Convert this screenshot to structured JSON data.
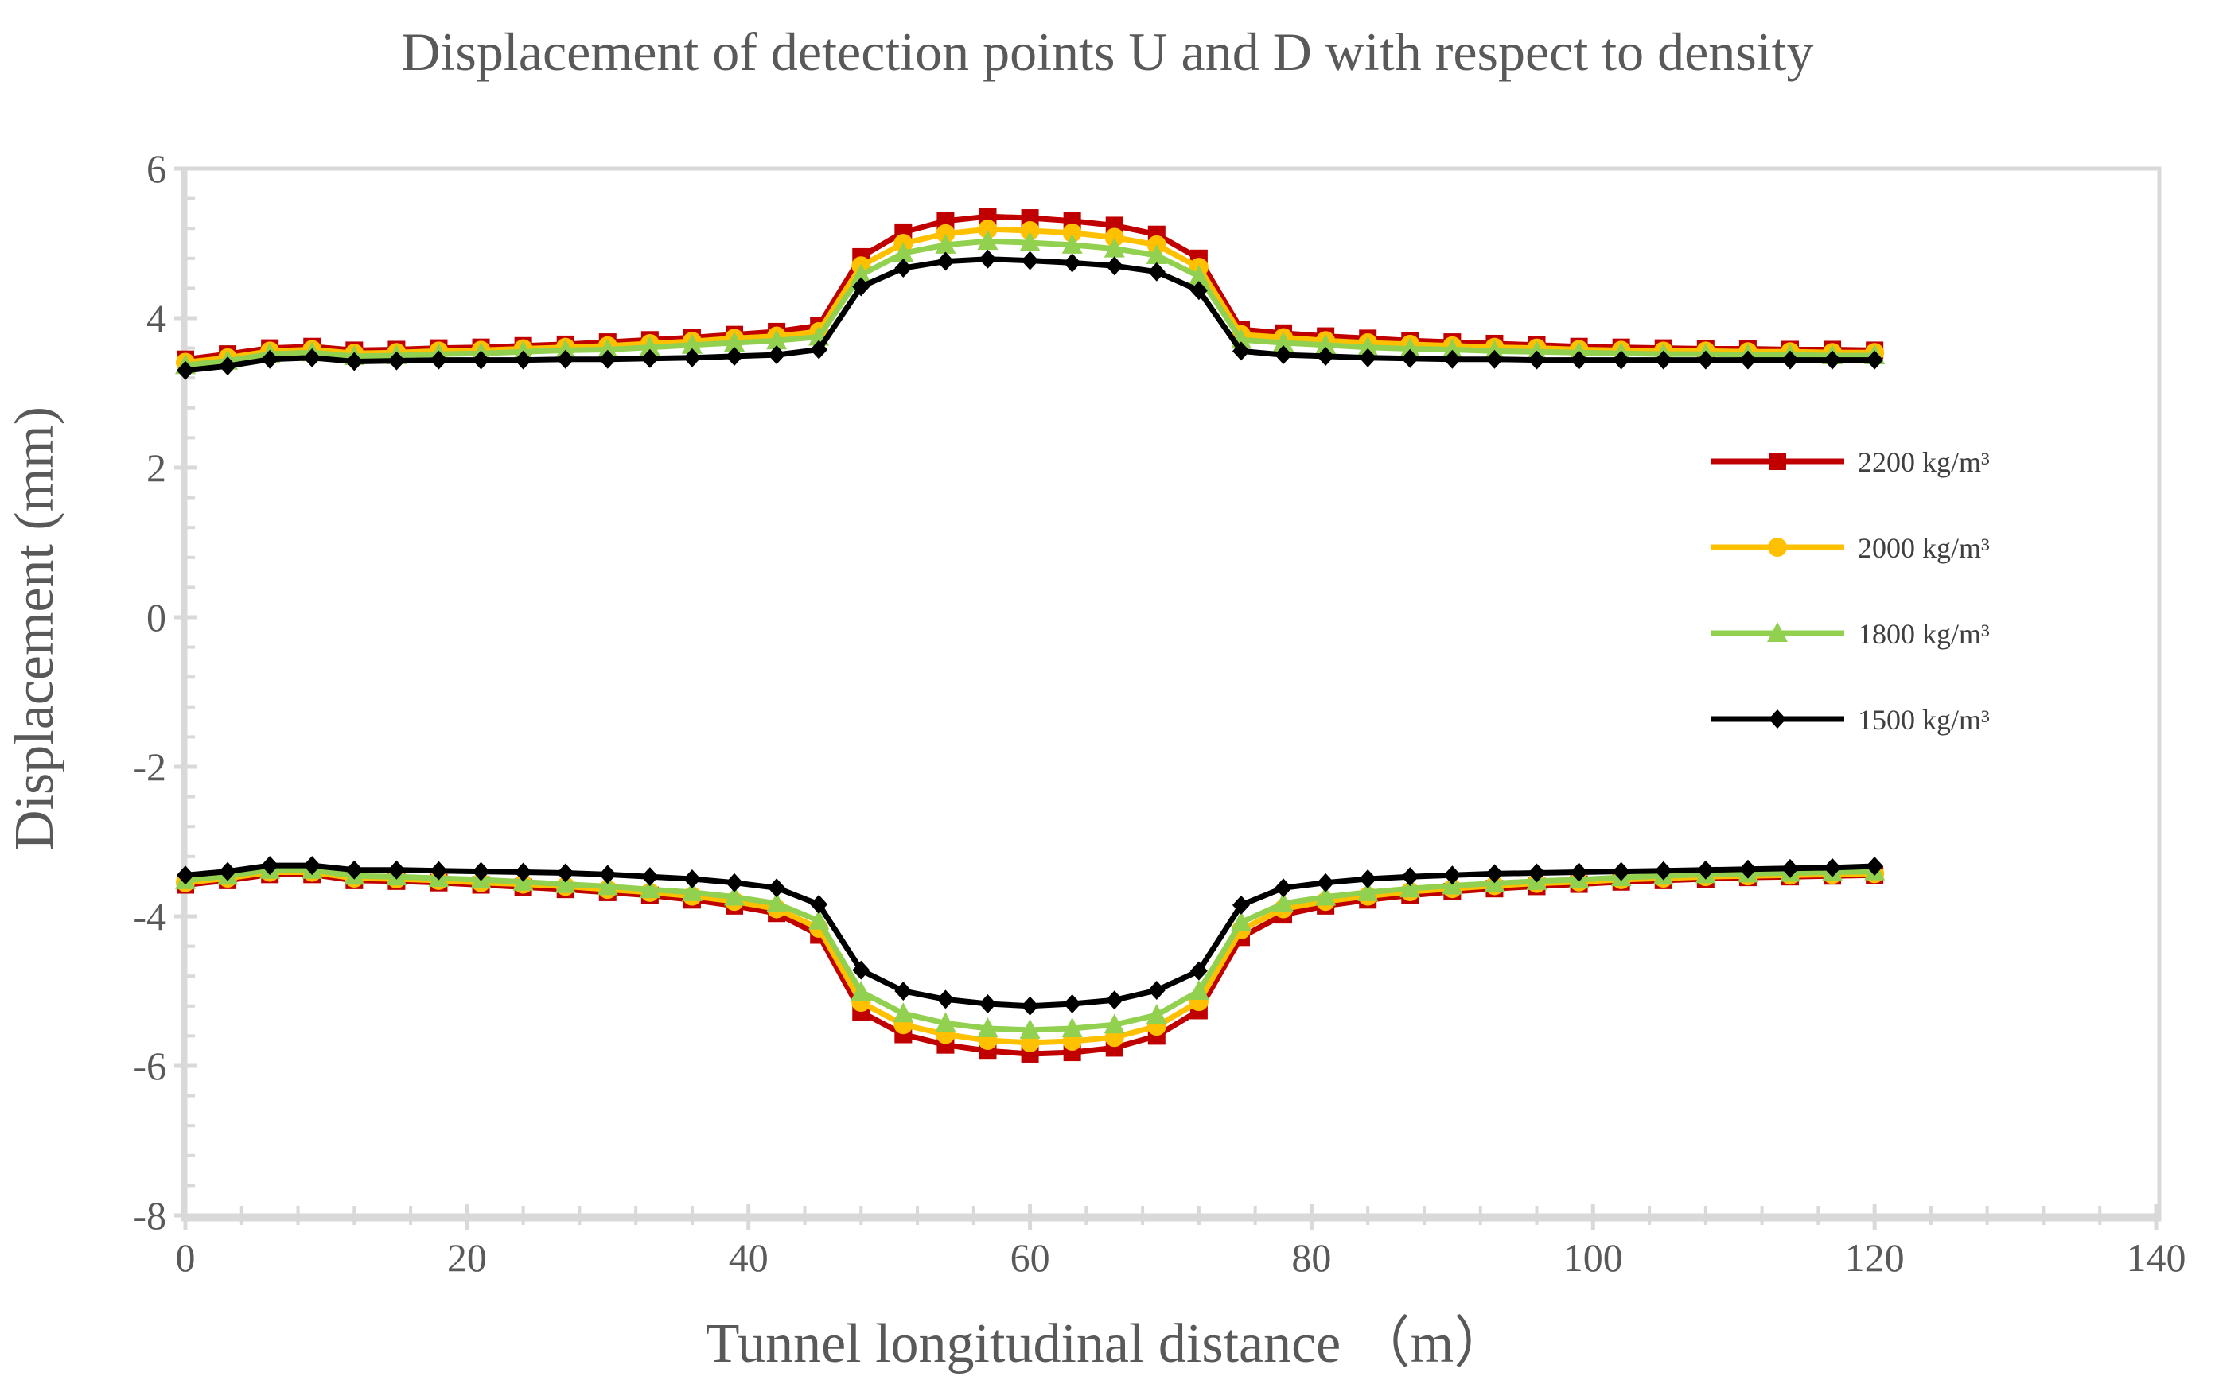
{
  "chart_data": {
    "type": "line",
    "title": "Displacement of detection points U and D with respect to density",
    "xlabel": "Tunnel longitudinal distance （m）",
    "ylabel": "Displacement (mm)",
    "xlim": [
      0,
      140
    ],
    "ylim": [
      -8,
      6
    ],
    "xticks": [
      0,
      20,
      40,
      60,
      80,
      100,
      120,
      140
    ],
    "yticks": [
      -8,
      -6,
      -4,
      -2,
      0,
      2,
      4,
      6
    ],
    "xtick_labels": [
      "0",
      "20",
      "40",
      "60",
      "80",
      "100",
      "120",
      "140"
    ],
    "ytick_labels": [
      "-8",
      "-6",
      "-4",
      "-2",
      "0",
      "2",
      "4",
      "6"
    ],
    "grid": false,
    "legend_position": "right",
    "x": [
      0,
      3,
      6,
      9,
      12,
      15,
      18,
      21,
      24,
      27,
      30,
      33,
      36,
      39,
      42,
      45,
      48,
      51,
      54,
      57,
      60,
      63,
      66,
      69,
      72,
      75,
      78,
      81,
      84,
      87,
      90,
      93,
      96,
      99,
      102,
      105,
      108,
      111,
      114,
      117,
      120
    ],
    "series": [
      {
        "name": "2200 kg/m³",
        "color": "#c00000",
        "marker": "square",
        "upper": [
          3.45,
          3.52,
          3.6,
          3.62,
          3.57,
          3.58,
          3.6,
          3.61,
          3.63,
          3.65,
          3.68,
          3.71,
          3.74,
          3.78,
          3.82,
          3.9,
          4.82,
          5.15,
          5.3,
          5.36,
          5.34,
          5.3,
          5.24,
          5.12,
          4.8,
          3.85,
          3.8,
          3.76,
          3.73,
          3.7,
          3.68,
          3.66,
          3.64,
          3.62,
          3.61,
          3.6,
          3.59,
          3.59,
          3.58,
          3.58,
          3.57
        ],
        "lower": [
          -3.58,
          -3.52,
          -3.44,
          -3.44,
          -3.52,
          -3.53,
          -3.55,
          -3.58,
          -3.61,
          -3.64,
          -3.68,
          -3.72,
          -3.78,
          -3.86,
          -3.96,
          -4.25,
          -5.28,
          -5.58,
          -5.72,
          -5.8,
          -5.84,
          -5.82,
          -5.76,
          -5.6,
          -5.26,
          -4.28,
          -3.98,
          -3.86,
          -3.78,
          -3.72,
          -3.67,
          -3.63,
          -3.6,
          -3.57,
          -3.54,
          -3.52,
          -3.5,
          -3.48,
          -3.47,
          -3.46,
          -3.45
        ]
      },
      {
        "name": "2000 kg/m³",
        "color": "#ffc000",
        "marker": "circle",
        "upper": [
          3.41,
          3.47,
          3.56,
          3.58,
          3.53,
          3.54,
          3.56,
          3.57,
          3.59,
          3.61,
          3.63,
          3.66,
          3.69,
          3.73,
          3.76,
          3.82,
          4.7,
          5.0,
          5.13,
          5.19,
          5.17,
          5.14,
          5.08,
          4.98,
          4.68,
          3.78,
          3.74,
          3.7,
          3.67,
          3.65,
          3.63,
          3.61,
          3.6,
          3.58,
          3.57,
          3.56,
          3.56,
          3.55,
          3.55,
          3.54,
          3.54
        ],
        "lower": [
          -3.55,
          -3.49,
          -3.41,
          -3.41,
          -3.49,
          -3.5,
          -3.52,
          -3.55,
          -3.57,
          -3.6,
          -3.64,
          -3.68,
          -3.73,
          -3.8,
          -3.9,
          -4.16,
          -5.15,
          -5.45,
          -5.58,
          -5.66,
          -5.69,
          -5.67,
          -5.62,
          -5.47,
          -5.14,
          -4.18,
          -3.9,
          -3.8,
          -3.73,
          -3.67,
          -3.63,
          -3.59,
          -3.56,
          -3.54,
          -3.51,
          -3.49,
          -3.47,
          -3.46,
          -3.45,
          -3.44,
          -3.43
        ]
      },
      {
        "name": "1800 kg/m³",
        "color": "#92d050",
        "marker": "triangle",
        "upper": [
          3.37,
          3.43,
          3.52,
          3.54,
          3.49,
          3.5,
          3.52,
          3.53,
          3.55,
          3.57,
          3.58,
          3.61,
          3.64,
          3.67,
          3.7,
          3.75,
          4.58,
          4.87,
          4.98,
          5.03,
          5.01,
          4.98,
          4.93,
          4.84,
          4.56,
          3.71,
          3.67,
          3.64,
          3.61,
          3.59,
          3.58,
          3.56,
          3.55,
          3.54,
          3.53,
          3.52,
          3.52,
          3.51,
          3.51,
          3.5,
          3.5
        ],
        "lower": [
          -3.52,
          -3.46,
          -3.38,
          -3.38,
          -3.46,
          -3.47,
          -3.49,
          -3.51,
          -3.54,
          -3.57,
          -3.6,
          -3.64,
          -3.68,
          -3.74,
          -3.83,
          -4.06,
          -5.01,
          -5.3,
          -5.43,
          -5.5,
          -5.52,
          -5.5,
          -5.45,
          -5.32,
          -5.0,
          -4.08,
          -3.83,
          -3.74,
          -3.68,
          -3.63,
          -3.59,
          -3.56,
          -3.53,
          -3.51,
          -3.48,
          -3.46,
          -3.44,
          -3.43,
          -3.42,
          -3.41,
          -3.4
        ]
      },
      {
        "name": "1500 kg/m³",
        "color": "#000000",
        "marker": "diamond",
        "upper": [
          3.3,
          3.36,
          3.45,
          3.47,
          3.42,
          3.43,
          3.44,
          3.44,
          3.44,
          3.45,
          3.45,
          3.46,
          3.47,
          3.49,
          3.51,
          3.58,
          4.42,
          4.67,
          4.76,
          4.79,
          4.77,
          4.74,
          4.7,
          4.62,
          4.37,
          3.56,
          3.51,
          3.49,
          3.47,
          3.46,
          3.45,
          3.45,
          3.44,
          3.44,
          3.44,
          3.44,
          3.44,
          3.44,
          3.44,
          3.44,
          3.44
        ],
        "lower": [
          -3.45,
          -3.4,
          -3.32,
          -3.32,
          -3.38,
          -3.38,
          -3.39,
          -3.4,
          -3.41,
          -3.42,
          -3.44,
          -3.47,
          -3.5,
          -3.55,
          -3.62,
          -3.84,
          -4.72,
          -5.0,
          -5.11,
          -5.17,
          -5.2,
          -5.17,
          -5.12,
          -4.99,
          -4.73,
          -3.85,
          -3.62,
          -3.55,
          -3.5,
          -3.47,
          -3.45,
          -3.43,
          -3.42,
          -3.41,
          -3.4,
          -3.39,
          -3.38,
          -3.37,
          -3.36,
          -3.35,
          -3.33
        ]
      }
    ]
  }
}
